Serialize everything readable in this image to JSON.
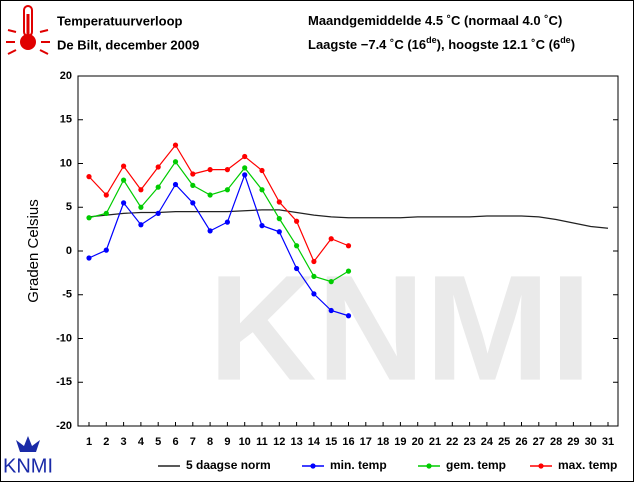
{
  "header": {
    "title": "Temperatuurverloop",
    "subtitle": "De Bilt, december 2009",
    "stats_line_1": [
      "Maandgemiddelde 4.5 ˚C (normaal 4.0 ˚C)"
    ],
    "stats_line_2": [
      "Laagste −7.4 ˚C (16",
      "de",
      "), hoogste 12.1 ˚C (6",
      "de",
      ")"
    ],
    "logo": "KNMI"
  },
  "chart_data": {
    "type": "line",
    "ylabel": "Graden Celsius",
    "categories": [
      "1",
      "2",
      "3",
      "4",
      "5",
      "6",
      "7",
      "8",
      "9",
      "10",
      "11",
      "12",
      "13",
      "14",
      "15",
      "16",
      "17",
      "18",
      "19",
      "20",
      "21",
      "22",
      "23",
      "24",
      "25",
      "26",
      "27",
      "28",
      "29",
      "30",
      "31"
    ],
    "ylim": [
      -20,
      20
    ],
    "yticks": [
      -20,
      -15,
      -10,
      -5,
      0,
      5,
      10,
      15,
      20
    ],
    "grid": false,
    "legend": "bottom",
    "series": [
      {
        "name": "5 daagse norm",
        "color": "#222222",
        "marker": false,
        "values": [
          3.9,
          4.1,
          4.3,
          4.4,
          4.4,
          4.5,
          4.5,
          4.5,
          4.5,
          4.6,
          4.7,
          4.7,
          4.4,
          4.1,
          3.9,
          3.8,
          3.8,
          3.8,
          3.8,
          3.9,
          3.9,
          3.9,
          3.9,
          4.0,
          4.0,
          4.0,
          3.9,
          3.6,
          3.2,
          2.8,
          2.6
        ]
      },
      {
        "name": "min. temp",
        "color": "#0000ff",
        "marker": true,
        "values": [
          -0.8,
          0.1,
          5.5,
          3.0,
          4.3,
          7.6,
          5.5,
          2.3,
          3.3,
          8.7,
          2.9,
          2.2,
          -2.0,
          -4.9,
          -6.8,
          -7.4,
          null,
          null,
          null,
          null,
          null,
          null,
          null,
          null,
          null,
          null,
          null,
          null,
          null,
          null,
          null
        ]
      },
      {
        "name": "gem. temp",
        "color": "#00cc00",
        "marker": true,
        "values": [
          3.8,
          4.3,
          8.1,
          5.0,
          7.3,
          10.2,
          7.5,
          6.4,
          7.0,
          9.5,
          7.0,
          3.7,
          0.6,
          -2.9,
          -3.5,
          -2.3,
          null,
          null,
          null,
          null,
          null,
          null,
          null,
          null,
          null,
          null,
          null,
          null,
          null,
          null,
          null
        ]
      },
      {
        "name": "max. temp",
        "color": "#ff0000",
        "marker": true,
        "values": [
          8.5,
          6.4,
          9.7,
          7.0,
          9.6,
          12.1,
          8.8,
          9.3,
          9.3,
          10.8,
          9.2,
          5.6,
          3.4,
          -1.2,
          1.4,
          0.6,
          null,
          null,
          null,
          null,
          null,
          null,
          null,
          null,
          null,
          null,
          null,
          null,
          null,
          null,
          null
        ]
      }
    ]
  }
}
